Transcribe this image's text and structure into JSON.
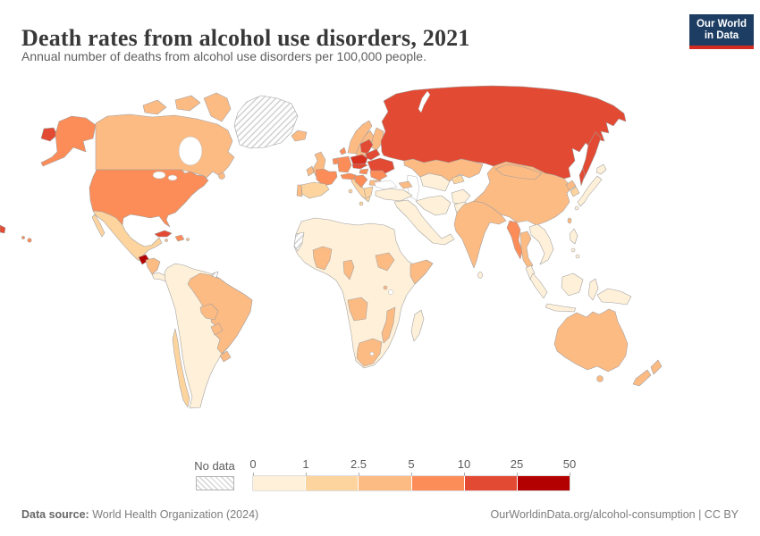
{
  "header": {
    "title": "Death rates from alcohol use disorders, 2021",
    "subtitle": "Annual number of deaths from alcohol use disorders per 100,000 people.",
    "logo": {
      "line1": "Our World",
      "line2": "in Data",
      "bg_color": "#1d3d63",
      "accent_color": "#d42b21"
    }
  },
  "legend": {
    "no_data_label": "No data",
    "ticks": [
      "0",
      "1",
      "2.5",
      "5",
      "10",
      "25",
      "50"
    ],
    "bin_colors": [
      "#FEF0D9",
      "#FDD49E",
      "#FDBB84",
      "#FC8D59",
      "#E34A33",
      "#B30000"
    ]
  },
  "footer": {
    "source_label": "Data source:",
    "source": "World Health Organization (2024)",
    "credit": "OurWorldinData.org/alcohol-consumption | CC BY"
  },
  "chart_data": {
    "type": "heatmap",
    "title": "Death rates from alcohol use disorders, 2021",
    "subtitle": "Annual number of deaths from alcohol use disorders per 100,000 people.",
    "unit": "deaths per 100,000 people",
    "bins": [
      0,
      1,
      2.5,
      5,
      10,
      25,
      50
    ],
    "bin_colors": [
      "#FEF0D9",
      "#FDD49E",
      "#FDBB84",
      "#FC8D59",
      "#E34A33",
      "#B30000"
    ],
    "no_data_pattern": "diagonal-hatch",
    "legend_position": "bottom"
  },
  "map": {
    "regions": {
      "greenland": "no-data",
      "western-sahara": "no-data",
      "french-guiana": "no-data",
      "canada": "#FDBB84",
      "canada-arctic-1": "#FDBB84",
      "canada-arctic-2": "#FDBB84",
      "canada-arctic-3": "#FDBB84",
      "newfoundland": "#FDBB84",
      "alaska": "#FC8D59",
      "usa": "#FC8D59",
      "hawaii": "#FC8D59",
      "chukotka": "#E34A33",
      "mexico": "#FDD49E",
      "baja-california": "#FDD49E",
      "guatemala": "#B30000",
      "honduras-nicaragua": "#FDBB84",
      "costa-rica-panama": "#FEF0D9",
      "cuba": "#E34A33",
      "hispaniola": "#FC8D59",
      "jamaica": "#FDBB84",
      "puerto-rico": "#FDBB84",
      "south-america": "#FEF0D9",
      "brazil": "#FDBB84",
      "bolivia": "#FDBB84",
      "paraguay": "#FDBB84",
      "uruguay": "#FDBB84",
      "chile": "#FDD49E",
      "iceland": "#FDBB84",
      "uk": "#FDBB84",
      "ireland": "#FDBB84",
      "norway": "#FDBB84",
      "sweden": "#FDBB84",
      "finland": "#FDBB84",
      "denmark": "#FC8D59",
      "germany": "#FC8D59",
      "benelux": "#FC8D59",
      "france": "#FC8D59",
      "spain": "#FDD49E",
      "portugal": "#FDBB84",
      "italy": "#FDD49E",
      "sicily": "#FDD49E",
      "sardinia": "#FDD49E",
      "austria-switzerland": "#FC8D59",
      "czech-slovakia": "#E34A33",
      "poland": "#D7301F",
      "baltics": "#E34A33",
      "belarus": "#E34A33",
      "ukraine": "#E34A33",
      "hungary": "#FC8D59",
      "romania": "#FC8D59",
      "balkans": "#FC8D59",
      "bulgaria": "#FDBB84",
      "greece": "#FDD49E",
      "russia": "#E34A33",
      "kamchatka": "#E34A33",
      "sakhalin": "#E34A33",
      "kazakhstan": "#FDBB84",
      "caucasus": "#FDBB84",
      "central-asia": "#FEF0D9",
      "kyrgyzstan-tajikistan": "#FDD49E",
      "turkey": "#FEF0D9",
      "iran": "#FEF0D9",
      "afghanistan": "#FEF0D9",
      "pakistan": "#FEF0D9",
      "arabia": "#FEF0D9",
      "africa": "#FEF0D9",
      "ghana-burkina": "#FDBB84",
      "cameroon": "#FDBB84",
      "south-sudan": "#FDBB84",
      "somalia": "#FDBB84",
      "angola": "#FDBB84",
      "mozambique": "#FDBB84",
      "south-africa": "#FDBB84",
      "rwanda-burundi": "#FDBB84",
      "madagascar": "#FEF0D9",
      "india": "#FDBB84",
      "sri-lanka": "#FEF0D9",
      "china": "#FDBB84",
      "mongolia": "#FDBB84",
      "taiwan": "#FDBB84",
      "north-korea": "#FDBB84",
      "south-korea": "#FDD49E",
      "japan": "#FEF0D9",
      "hokkaido": "#FEF0D9",
      "kyushu": "#FEF0D9",
      "myanmar": "#FC8D59",
      "thailand": "#FDBB84",
      "vietnam-laos": "#FEF0D9",
      "malaysia": "#FEF0D9",
      "sumatra": "#FEF0D9",
      "java": "#FEF0D9",
      "borneo": "#FEF0D9",
      "sulawesi": "#FEF0D9",
      "philippines": "#FEF0D9",
      "new-guinea": "#FEF0D9",
      "australia": "#FDBB84",
      "tasmania": "#FDBB84",
      "new-zealand-north": "#FDBB84",
      "new-zealand-south": "#FDBB84"
    }
  }
}
